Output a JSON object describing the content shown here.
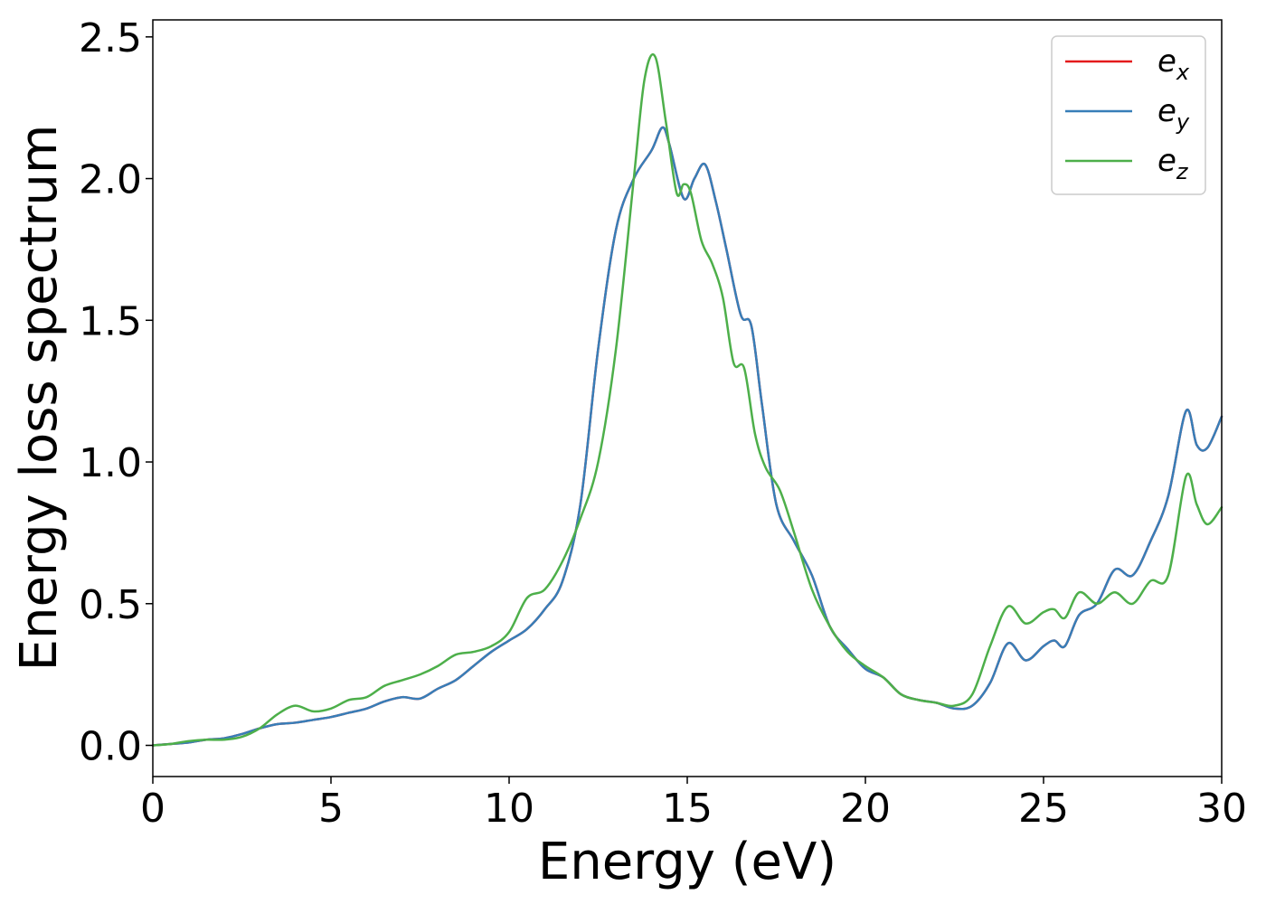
{
  "chart_data": {
    "type": "line",
    "xlabel": "Energy (eV)",
    "ylabel": "Energy loss spectrum",
    "xlim": [
      0,
      30
    ],
    "ylim": [
      -0.11,
      2.56
    ],
    "xticks": [
      0,
      5,
      10,
      15,
      20,
      25,
      30
    ],
    "xtick_labels": [
      "0",
      "5",
      "10",
      "15",
      "20",
      "25",
      "30"
    ],
    "yticks": [
      0.0,
      0.5,
      1.0,
      1.5,
      2.0,
      2.5
    ],
    "ytick_labels": [
      "0.0",
      "0.5",
      "1.0",
      "1.5",
      "2.0",
      "2.5"
    ],
    "grid": false,
    "legend_position": "top-right",
    "series": [
      {
        "name": "ex",
        "label_base": "e",
        "label_sub": "x",
        "color": "#e41a1c",
        "x": [
          0,
          0.5,
          1,
          1.5,
          2,
          2.5,
          3,
          3.5,
          4,
          4.5,
          5,
          5.5,
          6,
          6.5,
          7,
          7.5,
          8,
          8.5,
          9,
          9.5,
          10,
          10.5,
          11,
          11.5,
          12,
          12.5,
          13,
          13.5,
          14,
          14.3,
          14.5,
          14.9,
          15.2,
          15.5,
          15.8,
          16.1,
          16.5,
          16.8,
          17.1,
          17.5,
          18,
          18.5,
          19,
          19.5,
          20,
          20.5,
          21,
          21.5,
          22,
          22.5,
          23,
          23.5,
          24,
          24.5,
          25,
          25.3,
          25.6,
          26,
          26.5,
          27,
          27.5,
          28,
          28.5,
          29,
          29.3,
          29.6,
          30
        ],
        "y": [
          0,
          0.005,
          0.01,
          0.02,
          0.025,
          0.04,
          0.06,
          0.075,
          0.08,
          0.09,
          0.1,
          0.115,
          0.13,
          0.155,
          0.17,
          0.165,
          0.2,
          0.23,
          0.28,
          0.33,
          0.37,
          0.41,
          0.48,
          0.58,
          0.85,
          1.4,
          1.82,
          2.0,
          2.1,
          2.18,
          2.12,
          1.93,
          2.0,
          2.05,
          1.92,
          1.75,
          1.52,
          1.48,
          1.2,
          0.85,
          0.72,
          0.6,
          0.42,
          0.34,
          0.27,
          0.24,
          0.18,
          0.16,
          0.15,
          0.13,
          0.14,
          0.22,
          0.36,
          0.3,
          0.35,
          0.37,
          0.35,
          0.46,
          0.5,
          0.62,
          0.6,
          0.72,
          0.88,
          1.18,
          1.06,
          1.05,
          1.16
        ]
      },
      {
        "name": "ey",
        "label_base": "e",
        "label_sub": "y",
        "color": "#377eb8",
        "x": [
          0,
          0.5,
          1,
          1.5,
          2,
          2.5,
          3,
          3.5,
          4,
          4.5,
          5,
          5.5,
          6,
          6.5,
          7,
          7.5,
          8,
          8.5,
          9,
          9.5,
          10,
          10.5,
          11,
          11.5,
          12,
          12.5,
          13,
          13.5,
          14,
          14.3,
          14.5,
          14.9,
          15.2,
          15.5,
          15.8,
          16.1,
          16.5,
          16.8,
          17.1,
          17.5,
          18,
          18.5,
          19,
          19.5,
          20,
          20.5,
          21,
          21.5,
          22,
          22.5,
          23,
          23.5,
          24,
          24.5,
          25,
          25.3,
          25.6,
          26,
          26.5,
          27,
          27.5,
          28,
          28.5,
          29,
          29.3,
          29.6,
          30
        ],
        "y": [
          0,
          0.005,
          0.01,
          0.02,
          0.025,
          0.04,
          0.06,
          0.075,
          0.08,
          0.09,
          0.1,
          0.115,
          0.13,
          0.155,
          0.17,
          0.165,
          0.2,
          0.23,
          0.28,
          0.33,
          0.37,
          0.41,
          0.48,
          0.58,
          0.85,
          1.4,
          1.82,
          2.0,
          2.1,
          2.18,
          2.12,
          1.93,
          2.0,
          2.05,
          1.92,
          1.75,
          1.52,
          1.48,
          1.2,
          0.85,
          0.72,
          0.6,
          0.42,
          0.34,
          0.27,
          0.24,
          0.18,
          0.16,
          0.15,
          0.13,
          0.14,
          0.22,
          0.36,
          0.3,
          0.35,
          0.37,
          0.35,
          0.46,
          0.5,
          0.62,
          0.6,
          0.72,
          0.88,
          1.18,
          1.06,
          1.05,
          1.16
        ]
      },
      {
        "name": "ez",
        "label_base": "e",
        "label_sub": "z",
        "color": "#4daf4a",
        "x": [
          0,
          0.5,
          1,
          1.5,
          2,
          2.5,
          3,
          3.5,
          4,
          4.5,
          5,
          5.5,
          6,
          6.5,
          7,
          7.5,
          8,
          8.5,
          9,
          9.5,
          10,
          10.5,
          11,
          11.5,
          12,
          12.5,
          13,
          13.5,
          13.8,
          14.1,
          14.4,
          14.7,
          14.9,
          15.1,
          15.4,
          15.7,
          16,
          16.3,
          16.6,
          16.9,
          17.2,
          17.6,
          18,
          18.5,
          19,
          19.5,
          20,
          20.5,
          21,
          21.5,
          22,
          22.5,
          23,
          23.5,
          24,
          24.5,
          25,
          25.3,
          25.6,
          26,
          26.5,
          27,
          27.5,
          28,
          28.5,
          29,
          29.3,
          29.6,
          30
        ],
        "y": [
          0,
          0.005,
          0.015,
          0.02,
          0.02,
          0.03,
          0.06,
          0.11,
          0.14,
          0.12,
          0.13,
          0.16,
          0.17,
          0.21,
          0.23,
          0.25,
          0.28,
          0.32,
          0.33,
          0.35,
          0.4,
          0.52,
          0.55,
          0.65,
          0.8,
          1.0,
          1.4,
          2.0,
          2.35,
          2.43,
          2.2,
          1.95,
          1.98,
          1.95,
          1.78,
          1.7,
          1.58,
          1.35,
          1.33,
          1.1,
          0.98,
          0.9,
          0.75,
          0.55,
          0.42,
          0.33,
          0.28,
          0.24,
          0.18,
          0.16,
          0.15,
          0.14,
          0.18,
          0.35,
          0.49,
          0.43,
          0.47,
          0.48,
          0.45,
          0.54,
          0.5,
          0.54,
          0.5,
          0.58,
          0.6,
          0.95,
          0.85,
          0.78,
          0.84
        ]
      }
    ]
  }
}
